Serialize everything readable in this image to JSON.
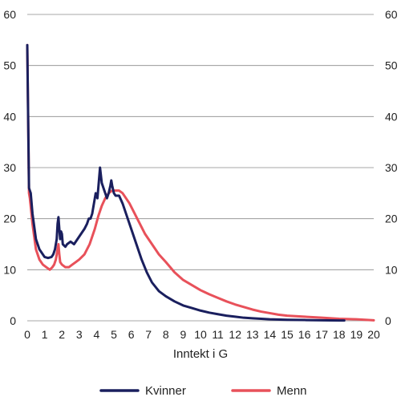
{
  "chart_data": {
    "type": "line",
    "title": "",
    "xlabel": "Inntekt i G",
    "ylabel": "",
    "xlim": [
      0,
      20
    ],
    "ylim": [
      0,
      60
    ],
    "x_ticks": [
      "0",
      "1",
      "2",
      "3",
      "4",
      "5",
      "6",
      "7",
      "8",
      "9",
      "10",
      "11",
      "12",
      "13",
      "14",
      "15",
      "16",
      "17",
      "18",
      "19",
      "20"
    ],
    "y_ticks": [
      "0",
      "10",
      "20",
      "30",
      "40",
      "50",
      "60"
    ],
    "grid": "horizontal",
    "secondary_y_axis": "mirrored",
    "legend_position": "bottom",
    "series": [
      {
        "name": "Kvinner",
        "color": "#1a1f5e",
        "points": [
          [
            0,
            54
          ],
          [
            0.05,
            40
          ],
          [
            0.1,
            26
          ],
          [
            0.2,
            25
          ],
          [
            0.3,
            21
          ],
          [
            0.5,
            16
          ],
          [
            0.7,
            14
          ],
          [
            1,
            12.5
          ],
          [
            1.2,
            12.3
          ],
          [
            1.4,
            12.5
          ],
          [
            1.5,
            13
          ],
          [
            1.6,
            14
          ],
          [
            1.7,
            16
          ],
          [
            1.75,
            19
          ],
          [
            1.8,
            20.3
          ],
          [
            1.85,
            18
          ],
          [
            1.9,
            16
          ],
          [
            1.95,
            17.5
          ],
          [
            2,
            17
          ],
          [
            2.05,
            15
          ],
          [
            2.2,
            14.5
          ],
          [
            2.3,
            15
          ],
          [
            2.5,
            15.5
          ],
          [
            2.7,
            15
          ],
          [
            2.9,
            16
          ],
          [
            3.1,
            17
          ],
          [
            3.3,
            18
          ],
          [
            3.45,
            19
          ],
          [
            3.55,
            20
          ],
          [
            3.65,
            20
          ],
          [
            3.75,
            21
          ],
          [
            3.85,
            23
          ],
          [
            3.95,
            25
          ],
          [
            4.05,
            24
          ],
          [
            4.15,
            28
          ],
          [
            4.2,
            30
          ],
          [
            4.3,
            27
          ],
          [
            4.4,
            26
          ],
          [
            4.5,
            25
          ],
          [
            4.6,
            24
          ],
          [
            4.7,
            25
          ],
          [
            4.8,
            26.5
          ],
          [
            4.85,
            27.5
          ],
          [
            4.9,
            26.5
          ],
          [
            5,
            25
          ],
          [
            5.1,
            24.5
          ],
          [
            5.3,
            24.5
          ],
          [
            5.5,
            23
          ],
          [
            5.7,
            21
          ],
          [
            6,
            18
          ],
          [
            6.3,
            15
          ],
          [
            6.6,
            12
          ],
          [
            6.9,
            9.5
          ],
          [
            7.2,
            7.5
          ],
          [
            7.6,
            5.8
          ],
          [
            8,
            4.8
          ],
          [
            8.5,
            3.8
          ],
          [
            9,
            3
          ],
          [
            9.5,
            2.5
          ],
          [
            10,
            2
          ],
          [
            10.5,
            1.6
          ],
          [
            11,
            1.3
          ],
          [
            11.5,
            1
          ],
          [
            12,
            0.8
          ],
          [
            12.5,
            0.6
          ],
          [
            13,
            0.5
          ],
          [
            14,
            0.3
          ],
          [
            15,
            0.2
          ],
          [
            16,
            0.15
          ],
          [
            17,
            0.1
          ],
          [
            18,
            0.05
          ],
          [
            18.3,
            0.05
          ]
        ]
      },
      {
        "name": "Menn",
        "color": "#e8515a",
        "points": [
          [
            0,
            54
          ],
          [
            0.05,
            40
          ],
          [
            0.1,
            25
          ],
          [
            0.15,
            24
          ],
          [
            0.3,
            19
          ],
          [
            0.5,
            14
          ],
          [
            0.7,
            12
          ],
          [
            0.9,
            11
          ],
          [
            1.1,
            10.5
          ],
          [
            1.3,
            10
          ],
          [
            1.45,
            10.5
          ],
          [
            1.55,
            11
          ],
          [
            1.65,
            12
          ],
          [
            1.75,
            14
          ],
          [
            1.8,
            15
          ],
          [
            1.85,
            13
          ],
          [
            1.9,
            11.5
          ],
          [
            2,
            11
          ],
          [
            2.2,
            10.5
          ],
          [
            2.4,
            10.5
          ],
          [
            2.6,
            11
          ],
          [
            2.8,
            11.5
          ],
          [
            3,
            12
          ],
          [
            3.3,
            13
          ],
          [
            3.6,
            15
          ],
          [
            3.9,
            18
          ],
          [
            4.1,
            20.5
          ],
          [
            4.3,
            22.5
          ],
          [
            4.5,
            24
          ],
          [
            4.7,
            25
          ],
          [
            4.9,
            25.5
          ],
          [
            5.1,
            25.5
          ],
          [
            5.3,
            25.5
          ],
          [
            5.5,
            25
          ],
          [
            5.7,
            24
          ],
          [
            5.9,
            23
          ],
          [
            6.2,
            21
          ],
          [
            6.5,
            19
          ],
          [
            6.8,
            17
          ],
          [
            7.2,
            15
          ],
          [
            7.6,
            13
          ],
          [
            8,
            11.5
          ],
          [
            8.5,
            9.5
          ],
          [
            9,
            8
          ],
          [
            9.5,
            7
          ],
          [
            10,
            6
          ],
          [
            10.5,
            5.2
          ],
          [
            11,
            4.5
          ],
          [
            11.5,
            3.8
          ],
          [
            12,
            3.2
          ],
          [
            12.5,
            2.7
          ],
          [
            13,
            2.2
          ],
          [
            13.5,
            1.8
          ],
          [
            14,
            1.5
          ],
          [
            14.5,
            1.2
          ],
          [
            15,
            1
          ],
          [
            15.5,
            0.9
          ],
          [
            16,
            0.8
          ],
          [
            17,
            0.6
          ],
          [
            18,
            0.4
          ],
          [
            19,
            0.3
          ],
          [
            19.5,
            0.2
          ],
          [
            20,
            0.1
          ]
        ]
      }
    ]
  }
}
